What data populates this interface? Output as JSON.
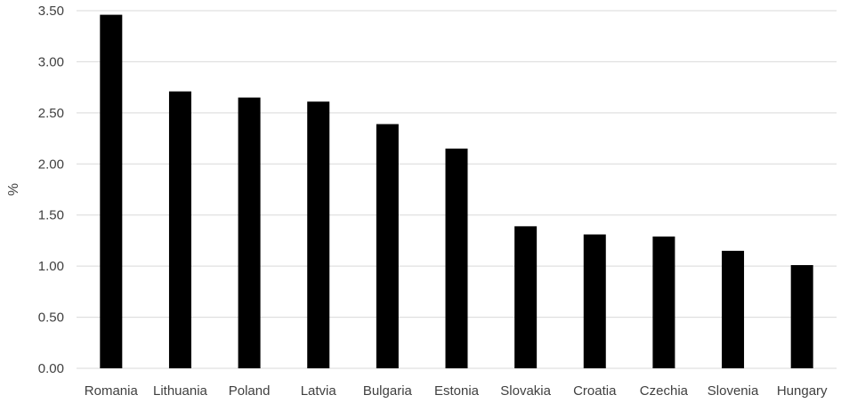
{
  "chart_data": {
    "type": "bar",
    "title": "",
    "xlabel": "",
    "ylabel": "%",
    "categories": [
      "Romania",
      "Lithuania",
      "Poland",
      "Latvia",
      "Bulgaria",
      "Estonia",
      "Slovakia",
      "Croatia",
      "Czechia",
      "Slovenia",
      "Hungary"
    ],
    "values": [
      3.46,
      2.71,
      2.65,
      2.61,
      2.39,
      2.15,
      1.39,
      1.31,
      1.29,
      1.15,
      1.01
    ],
    "ylim": [
      0,
      3.5
    ],
    "yticks": [
      "0.00",
      "0.50",
      "1.00",
      "1.50",
      "2.00",
      "2.50",
      "3.00",
      "3.50"
    ],
    "grid": true,
    "legend": "none",
    "colors": {
      "bar": "#000000",
      "grid": "#d9d9d9",
      "text": "#404040"
    }
  }
}
